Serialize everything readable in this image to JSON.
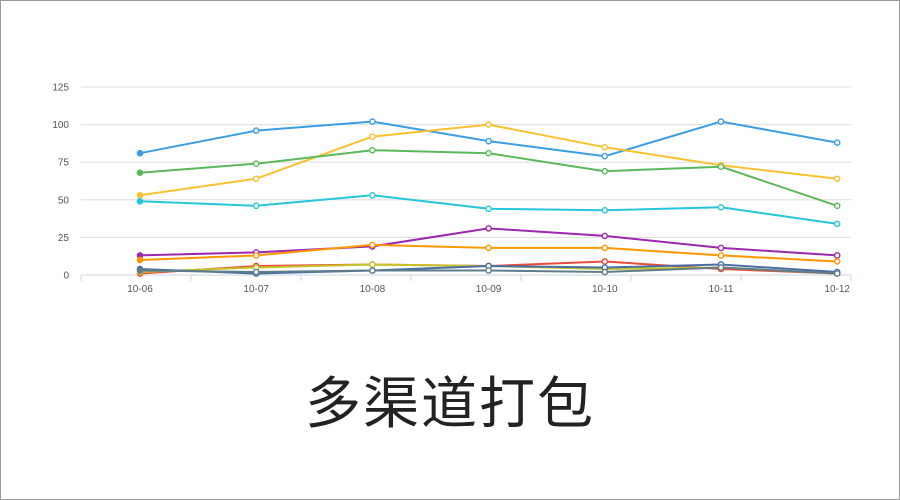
{
  "caption": "多渠道打包",
  "chart_data": {
    "type": "line",
    "title": "",
    "xlabel": "",
    "ylabel": "",
    "categories": [
      "10-06",
      "10-07",
      "10-08",
      "10-09",
      "10-10",
      "10-11",
      "10-12"
    ],
    "ylim": [
      0,
      125
    ],
    "yticks": [
      0,
      25,
      50,
      75,
      100,
      125
    ],
    "grid": true,
    "legend": "none",
    "series": [
      {
        "color": "#3a9ee4",
        "values": [
          81,
          96,
          102,
          89,
          79,
          102,
          88
        ]
      },
      {
        "color": "#fbc02d",
        "values": [
          53,
          64,
          92,
          100,
          85,
          73,
          64
        ]
      },
      {
        "color": "#5cb85c",
        "values": [
          68,
          74,
          83,
          81,
          69,
          72,
          46
        ]
      },
      {
        "color": "#26c6da",
        "values": [
          49,
          46,
          53,
          44,
          43,
          45,
          34
        ]
      },
      {
        "color": "#9c27b0",
        "values": [
          13,
          15,
          19,
          31,
          26,
          18,
          13
        ]
      },
      {
        "color": "#ff9800",
        "values": [
          10,
          13,
          20,
          18,
          18,
          13,
          9
        ]
      },
      {
        "color": "#e74c3c",
        "values": [
          1,
          6,
          7,
          6,
          9,
          4,
          1
        ]
      },
      {
        "color": "#c6c32a",
        "values": [
          2,
          5,
          7,
          6,
          4,
          5,
          1
        ]
      },
      {
        "color": "#4a6fa5",
        "values": [
          4,
          1,
          3,
          6,
          5,
          7,
          2
        ]
      },
      {
        "color": "#5f7c8a",
        "values": [
          3,
          2,
          3,
          3,
          2,
          5,
          1
        ]
      }
    ]
  }
}
